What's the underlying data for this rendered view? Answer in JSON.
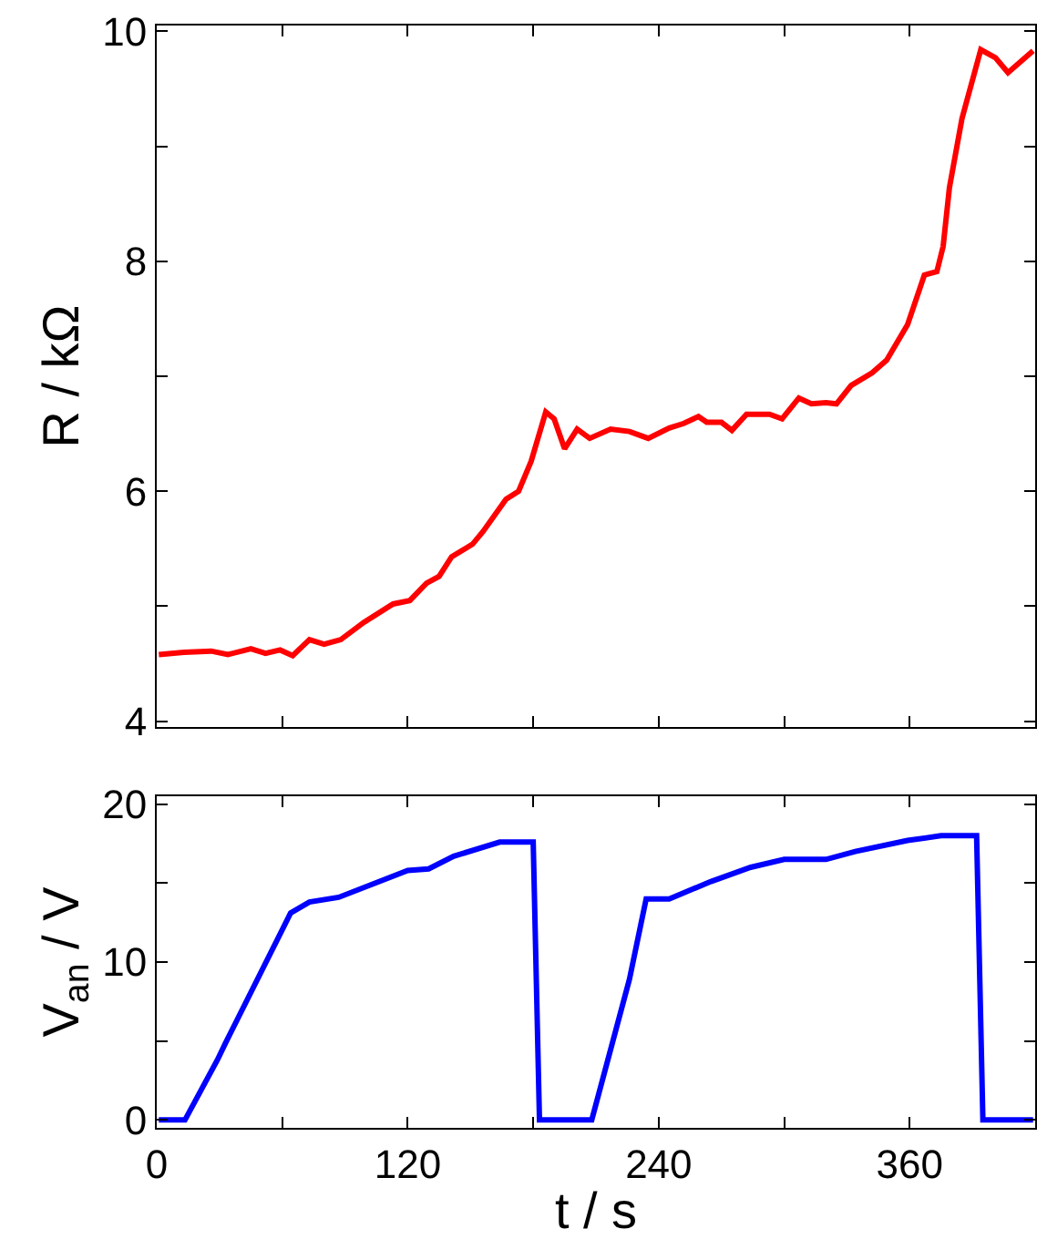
{
  "chart_data": [
    {
      "type": "line",
      "ylabel": "R / kΩ",
      "xlim": [
        0,
        420
      ],
      "xticks": [
        0,
        {
          "value": 60,
          "label": null
        },
        120,
        {
          "value": 180,
          "label": null
        },
        240,
        {
          "value": 300,
          "label": null
        },
        360,
        {
          "value": 420,
          "label": null
        }
      ],
      "ylim": [
        3.95,
        10.05
      ],
      "yticks": [
        4,
        {
          "value": 5,
          "label": null
        },
        6,
        {
          "value": 7,
          "label": null
        },
        8,
        {
          "value": 9,
          "label": null
        },
        10
      ],
      "tick_labels": "y",
      "marker": "none",
      "line_style": "solid",
      "series": [
        {
          "color": "#ff0000",
          "x": [
            1,
            13,
            26,
            34,
            45,
            52,
            59,
            65,
            73,
            80,
            88,
            99,
            113,
            121,
            129,
            135,
            141,
            151,
            156,
            167,
            173,
            179,
            186,
            190,
            195,
            201,
            207,
            217,
            226,
            235,
            245,
            252,
            259,
            263,
            270,
            275,
            282,
            293,
            299,
            307,
            313,
            320,
            325,
            332,
            342,
            349,
            359,
            367,
            373,
            376,
            379,
            385,
            394,
            401,
            407,
            419
          ],
          "values": [
            4.58,
            4.6,
            4.61,
            4.58,
            4.63,
            4.59,
            4.62,
            4.57,
            4.71,
            4.67,
            4.71,
            4.86,
            5.02,
            5.05,
            5.2,
            5.26,
            5.43,
            5.54,
            5.65,
            5.93,
            6.0,
            6.26,
            6.69,
            6.63,
            6.37,
            6.54,
            6.46,
            6.54,
            6.52,
            6.46,
            6.55,
            6.59,
            6.65,
            6.6,
            6.6,
            6.53,
            6.67,
            6.67,
            6.63,
            6.81,
            6.76,
            6.77,
            6.76,
            6.92,
            7.03,
            7.14,
            7.45,
            7.88,
            7.91,
            8.13,
            8.64,
            9.24,
            9.84,
            9.77,
            9.64,
            9.83
          ]
        }
      ]
    },
    {
      "type": "line",
      "xlabel": "t / s",
      "ylabel": "V$_{an}$ / V",
      "xlim": [
        0,
        420
      ],
      "xticks": [
        0,
        {
          "value": 60,
          "label": null
        },
        120,
        {
          "value": 180,
          "label": null
        },
        240,
        {
          "value": 300,
          "label": null
        },
        360,
        {
          "value": 420,
          "label": null
        }
      ],
      "ylim": [
        -0.5,
        20.5
      ],
      "yticks": [
        0,
        {
          "value": 5,
          "label": null
        },
        10,
        {
          "value": 15,
          "label": null
        },
        20
      ],
      "marker": "none",
      "line_style": "solid",
      "series": [
        {
          "color": "#0000ff",
          "x": [
            1,
            13.5,
            29,
            33,
            64,
            73,
            87,
            120,
            130,
            142,
            164,
            180,
            183,
            208,
            226,
            234,
            245,
            265,
            284,
            300,
            320,
            334,
            359,
            375,
            392,
            395,
            419
          ],
          "values": [
            0,
            0,
            3.8,
            4.9,
            13.1,
            13.8,
            14.1,
            15.8,
            15.9,
            16.7,
            17.6,
            17.6,
            0,
            0,
            8.9,
            14.0,
            14.0,
            15.1,
            16.0,
            16.5,
            16.5,
            17.0,
            17.7,
            18.0,
            18.0,
            0,
            0
          ]
        }
      ]
    }
  ]
}
